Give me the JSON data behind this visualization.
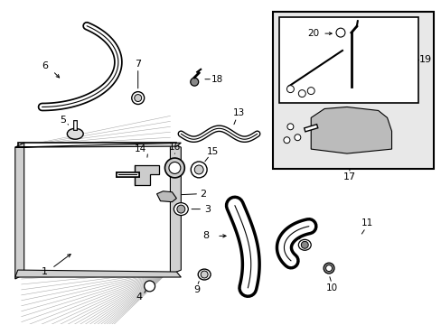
{
  "bg_color": "#ffffff",
  "line_color": "#000000",
  "text_color": "#000000",
  "inset_bg": "#e8e8e8",
  "inset2_bg": "#e0e0e0",
  "rad_hatch_color": "#999999",
  "rad_frame_color": "#cccccc"
}
